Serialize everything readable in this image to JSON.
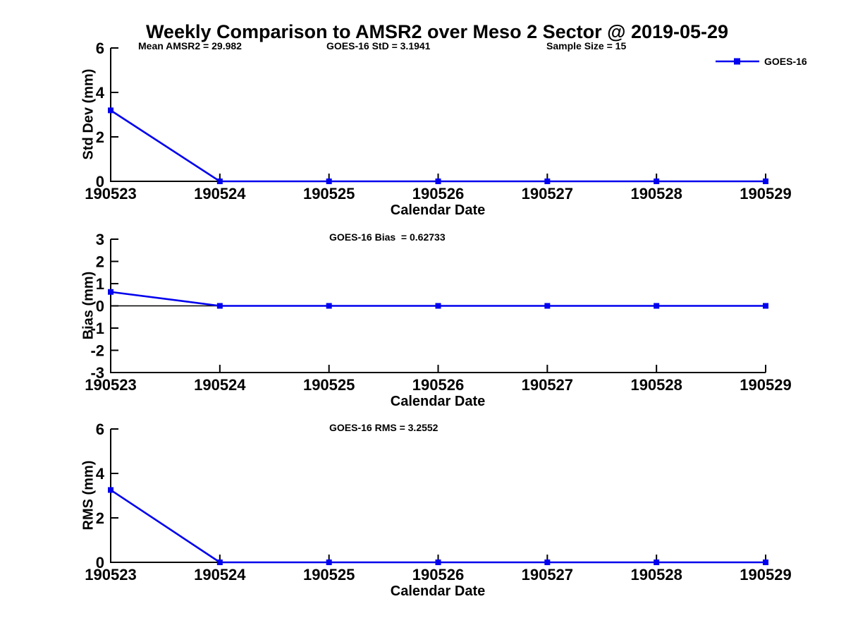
{
  "title": "Weekly Comparison to AMSR2 over Meso 2 Sector @ 2019-05-29",
  "annotations": {
    "mean_amsr2": "Mean AMSR2 = 29.982",
    "goes16_std": "GOES-16 StD = 3.1941",
    "sample_size": "Sample Size = 15",
    "goes16_bias": "GOES-16 Bias  = 0.62733",
    "goes16_rms": "GOES-16 RMS = 3.2552"
  },
  "legend": {
    "label": "GOES-16",
    "color": "#0000EE",
    "marker": "square"
  },
  "colors": {
    "series": "#0000EE",
    "axis": "#000000",
    "background": "#ffffff"
  },
  "chart_data": [
    {
      "type": "line",
      "categories": [
        "190523",
        "190524",
        "190525",
        "190526",
        "190527",
        "190528",
        "190529"
      ],
      "series": [
        {
          "name": "GOES-16",
          "color": "#0000EE",
          "marker": "square",
          "values": [
            3.1941,
            0,
            0,
            0,
            0,
            0,
            0
          ]
        }
      ],
      "xlabel": "Calendar Date",
      "ylabel": "Std Dev (mm)",
      "ylim": [
        0,
        6
      ],
      "yticks": [
        0,
        2,
        4,
        6
      ],
      "grid": false,
      "legend_position": "top-right-outside"
    },
    {
      "type": "line",
      "categories": [
        "190523",
        "190524",
        "190525",
        "190526",
        "190527",
        "190528",
        "190529"
      ],
      "series": [
        {
          "name": "GOES-16",
          "color": "#0000EE",
          "marker": "square",
          "values": [
            0.62733,
            0,
            0,
            0,
            0,
            0,
            0
          ]
        }
      ],
      "xlabel": "Calendar Date",
      "ylabel": "Bias (mm)",
      "ylim": [
        -3,
        3
      ],
      "yticks": [
        -3,
        -2,
        -1,
        0,
        1,
        2,
        3
      ],
      "grid": false,
      "zero_line": true
    },
    {
      "type": "line",
      "categories": [
        "190523",
        "190524",
        "190525",
        "190526",
        "190527",
        "190528",
        "190529"
      ],
      "series": [
        {
          "name": "GOES-16",
          "color": "#0000EE",
          "marker": "square",
          "values": [
            3.2552,
            0,
            0,
            0,
            0,
            0,
            0
          ]
        }
      ],
      "xlabel": "Calendar Date",
      "ylabel": "RMS (mm)",
      "ylim": [
        0,
        6
      ],
      "yticks": [
        0,
        2,
        4,
        6
      ],
      "grid": false
    }
  ]
}
